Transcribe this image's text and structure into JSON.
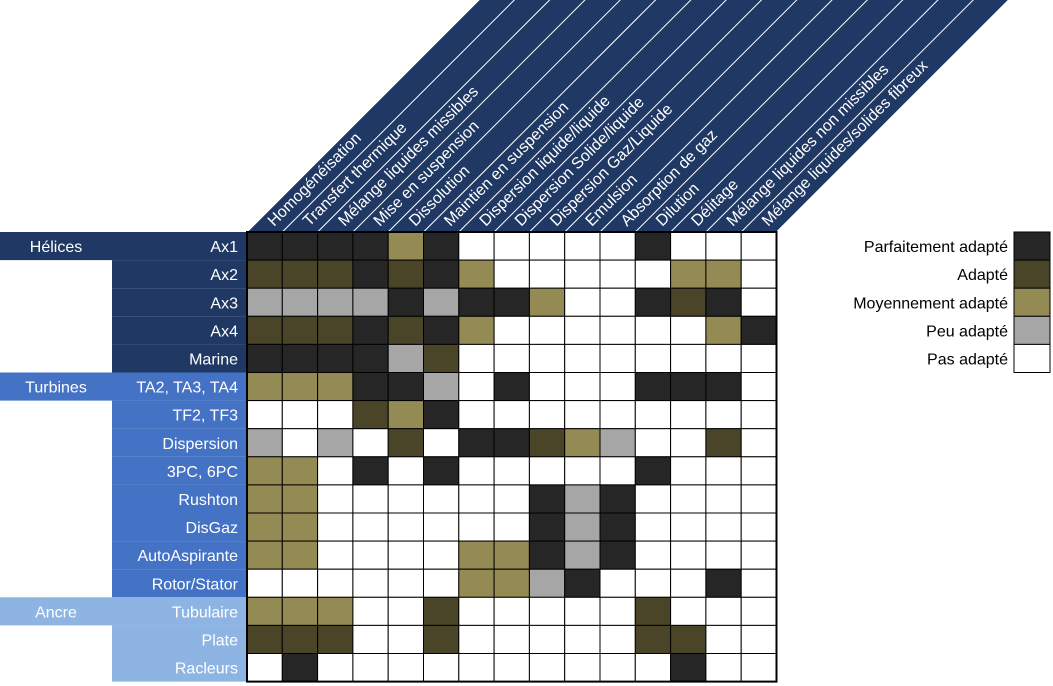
{
  "chart_data": {
    "type": "heatmap",
    "title": "",
    "columns": [
      "Homogénéisation",
      "Transfert thermique",
      "Mélange liquides missibles",
      "Mise en suspension",
      "Dissolution",
      "Maintien en suspension",
      "Dispersion liquide/liquide",
      "Dispersion Solide/liquide",
      "Dispersion Gaz/Liquide",
      "Emulsion",
      "Absorption de gaz",
      "Dilution",
      "Délitage",
      "Mélange liquides non missibles",
      "Mélange liquides/solides fibreux"
    ],
    "groups": [
      {
        "name": "Hélices",
        "color": "#1f3864",
        "rows": [
          "Ax1",
          "Ax2",
          "Ax3",
          "Ax4",
          "Marine"
        ]
      },
      {
        "name": "Turbines",
        "color": "#4472c4",
        "rows": [
          "TA2, TA3, TA4",
          "TF2, TF3",
          "Dispersion",
          "3PC, 6PC",
          "Rushton",
          "DisGaz",
          "AutoAspirante",
          "Rotor/Stator"
        ]
      },
      {
        "name": "Ancre",
        "color": "#8eb4e3",
        "rows": [
          "Tubulaire",
          "Plate",
          "Racleurs"
        ]
      }
    ],
    "legend": [
      {
        "label": "Parfaitement adapté",
        "level": 4,
        "color": "#262626"
      },
      {
        "label": "Adapté",
        "level": 3,
        "color": "#4a4528"
      },
      {
        "label": "Moyennement adapté",
        "level": 2,
        "color": "#948a54"
      },
      {
        "label": "Peu adapté",
        "level": 1,
        "color": "#a6a6a6"
      },
      {
        "label": "Pas adapté",
        "level": 0,
        "color": "#ffffff"
      }
    ],
    "legend_position": "right",
    "values": [
      [
        4,
        4,
        4,
        4,
        2,
        4,
        0,
        0,
        0,
        0,
        0,
        4,
        0,
        0,
        0
      ],
      [
        3,
        3,
        3,
        4,
        3,
        4,
        2,
        0,
        0,
        0,
        0,
        0,
        2,
        2,
        0
      ],
      [
        1,
        1,
        1,
        1,
        4,
        1,
        4,
        4,
        2,
        0,
        0,
        4,
        3,
        4,
        0
      ],
      [
        3,
        3,
        3,
        4,
        3,
        4,
        2,
        0,
        0,
        0,
        0,
        0,
        0,
        2,
        4
      ],
      [
        4,
        4,
        4,
        4,
        1,
        3,
        0,
        0,
        0,
        0,
        0,
        0,
        0,
        0,
        0
      ],
      [
        2,
        2,
        2,
        4,
        4,
        1,
        0,
        4,
        0,
        0,
        0,
        4,
        4,
        4,
        0
      ],
      [
        0,
        0,
        0,
        3,
        2,
        4,
        0,
        0,
        0,
        0,
        0,
        0,
        0,
        0,
        0
      ],
      [
        1,
        0,
        1,
        0,
        3,
        0,
        4,
        4,
        3,
        2,
        1,
        0,
        0,
        3,
        0
      ],
      [
        2,
        2,
        0,
        4,
        0,
        4,
        0,
        0,
        0,
        0,
        0,
        4,
        0,
        0,
        0
      ],
      [
        2,
        2,
        0,
        0,
        0,
        0,
        0,
        0,
        4,
        1,
        4,
        0,
        0,
        0,
        0
      ],
      [
        2,
        2,
        0,
        0,
        0,
        0,
        0,
        0,
        4,
        1,
        4,
        0,
        0,
        0,
        0
      ],
      [
        2,
        2,
        0,
        0,
        0,
        0,
        2,
        2,
        4,
        1,
        4,
        0,
        0,
        0,
        0
      ],
      [
        0,
        0,
        0,
        0,
        0,
        0,
        2,
        2,
        1,
        4,
        0,
        0,
        0,
        4,
        0
      ],
      [
        2,
        2,
        2,
        0,
        0,
        3,
        0,
        0,
        0,
        0,
        0,
        3,
        0,
        0,
        0
      ],
      [
        3,
        3,
        3,
        0,
        0,
        3,
        0,
        0,
        0,
        0,
        0,
        3,
        3,
        0,
        0
      ],
      [
        0,
        4,
        0,
        0,
        0,
        0,
        0,
        0,
        0,
        0,
        0,
        0,
        4,
        0,
        0
      ]
    ]
  }
}
